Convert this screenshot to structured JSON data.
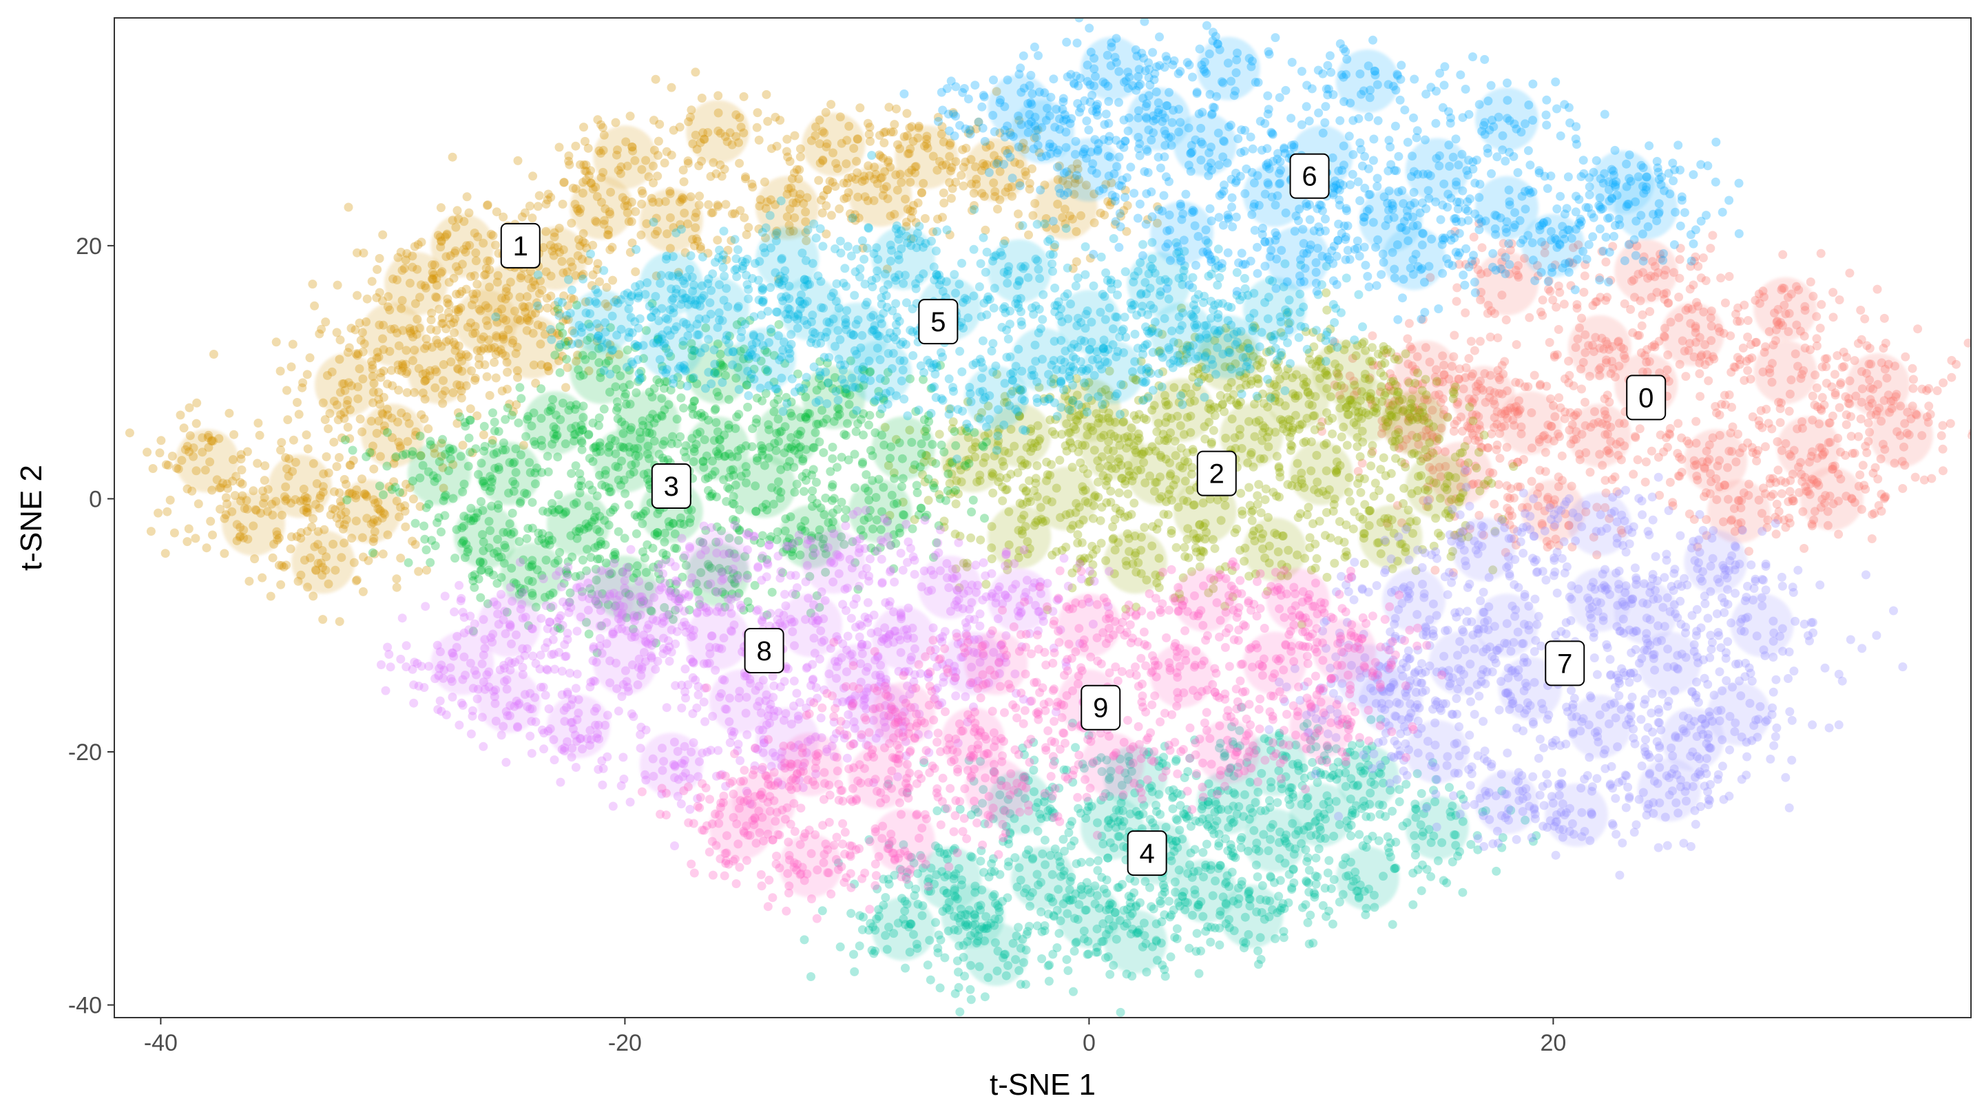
{
  "chart_data": {
    "type": "scatter",
    "title": "",
    "xlabel": "t-SNE 1",
    "ylabel": "t-SNE 2",
    "xlim": [
      -42,
      38
    ],
    "ylim": [
      -41,
      38
    ],
    "x_ticks": [
      -40,
      -20,
      0,
      20
    ],
    "y_ticks": [
      -40,
      -20,
      0,
      20
    ],
    "x_tick_labels": [
      "-40",
      "-20",
      "0",
      "20"
    ],
    "y_tick_labels": [
      "-40",
      "-20",
      "0",
      "20"
    ],
    "grid": false,
    "legend": "none",
    "clusters": [
      {
        "label": "0",
        "color": "#F8766D",
        "label_x": 24.0,
        "label_y": 8.0,
        "points": [
          [
            14.5,
            10
          ],
          [
            18,
            17
          ],
          [
            24,
            18
          ],
          [
            30,
            15
          ],
          [
            34,
            9
          ],
          [
            35,
            5
          ],
          [
            32,
            0
          ],
          [
            28,
            -1
          ],
          [
            20,
            -1
          ],
          [
            16,
            2
          ],
          [
            14,
            6
          ],
          [
            17,
            8
          ],
          [
            22,
            12
          ],
          [
            26,
            13
          ],
          [
            30,
            10
          ],
          [
            31,
            4
          ],
          [
            27,
            3
          ],
          [
            22,
            5
          ],
          [
            19,
            6
          ],
          [
            24,
            9
          ]
        ]
      },
      {
        "label": "1",
        "color": "#D39200",
        "label_x": -24.5,
        "label_y": 20.0,
        "points": [
          [
            -38,
            3
          ],
          [
            -36,
            -2
          ],
          [
            -33,
            -5
          ],
          [
            -31,
            -1
          ],
          [
            -30,
            5
          ],
          [
            -32,
            9
          ],
          [
            -30,
            13
          ],
          [
            -29,
            17
          ],
          [
            -27,
            20
          ],
          [
            -25,
            16
          ],
          [
            -24,
            12
          ],
          [
            -23,
            19
          ],
          [
            -21,
            23
          ],
          [
            -20,
            27
          ],
          [
            -16,
            29
          ],
          [
            -11,
            28
          ],
          [
            -7,
            27
          ],
          [
            -4,
            26
          ],
          [
            -1,
            23
          ],
          [
            -13,
            23
          ],
          [
            -18,
            22
          ],
          [
            -9,
            24
          ],
          [
            -34,
            1
          ],
          [
            -28,
            10
          ],
          [
            -26,
            14
          ]
        ]
      },
      {
        "label": "2",
        "color": "#93AA00",
        "label_x": 5.5,
        "label_y": 2.0,
        "points": [
          [
            -5,
            3
          ],
          [
            -3,
            -3
          ],
          [
            2,
            -5
          ],
          [
            8,
            -4
          ],
          [
            13,
            -3
          ],
          [
            15,
            1
          ],
          [
            14,
            6
          ],
          [
            11,
            10
          ],
          [
            6,
            11
          ],
          [
            0,
            7
          ],
          [
            -3,
            5
          ],
          [
            3,
            2
          ],
          [
            7,
            5
          ],
          [
            10,
            2
          ],
          [
            5,
            -1
          ],
          [
            -1,
            0
          ],
          [
            12,
            7
          ],
          [
            9,
            8
          ],
          [
            1,
            4
          ],
          [
            4,
            7
          ]
        ]
      },
      {
        "label": "3",
        "color": "#00BA38",
        "label_x": -18.0,
        "label_y": 1.0,
        "points": [
          [
            -28,
            2
          ],
          [
            -26,
            -3
          ],
          [
            -24,
            -6
          ],
          [
            -20,
            -7
          ],
          [
            -16,
            -6
          ],
          [
            -12,
            -3
          ],
          [
            -9,
            -1
          ],
          [
            -8,
            4
          ],
          [
            -11,
            8
          ],
          [
            -16,
            10
          ],
          [
            -21,
            10
          ],
          [
            -23,
            6
          ],
          [
            -25,
            2
          ],
          [
            -20,
            3
          ],
          [
            -16,
            4
          ],
          [
            -13,
            5
          ],
          [
            -18,
            -1
          ],
          [
            -22,
            -2
          ],
          [
            -14,
            1
          ],
          [
            -19,
            6
          ]
        ]
      },
      {
        "label": "4",
        "color": "#00C19F",
        "label_x": 2.5,
        "label_y": -28.0,
        "points": [
          [
            -8,
            -34
          ],
          [
            -6,
            -30
          ],
          [
            -3,
            -24
          ],
          [
            2,
            -22
          ],
          [
            8,
            -21
          ],
          [
            12,
            -22
          ],
          [
            15,
            -26
          ],
          [
            12,
            -30
          ],
          [
            7,
            -33
          ],
          [
            2,
            -35
          ],
          [
            -4,
            -36
          ],
          [
            -2,
            -30
          ],
          [
            3,
            -28
          ],
          [
            8,
            -27
          ],
          [
            5,
            -31
          ],
          [
            0,
            -33
          ],
          [
            10,
            -25
          ],
          [
            -5,
            -33
          ],
          [
            6,
            -24
          ],
          [
            1,
            -26
          ]
        ]
      },
      {
        "label": "5",
        "color": "#00B9E3",
        "label_x": -6.5,
        "label_y": 14.0,
        "points": [
          [
            -21,
            14
          ],
          [
            -18,
            17
          ],
          [
            -13,
            19
          ],
          [
            -8,
            19
          ],
          [
            -3,
            18
          ],
          [
            3,
            17
          ],
          [
            8,
            15
          ],
          [
            6,
            12
          ],
          [
            1,
            10
          ],
          [
            -4,
            8
          ],
          [
            -9,
            10
          ],
          [
            -14,
            11
          ],
          [
            -18,
            12
          ],
          [
            -12,
            15
          ],
          [
            -6,
            15
          ],
          [
            0,
            14
          ],
          [
            4,
            13
          ],
          [
            -10,
            13
          ],
          [
            -16,
            15
          ],
          [
            -2,
            11
          ]
        ]
      },
      {
        "label": "6",
        "color": "#00A9FF",
        "label_x": 9.5,
        "label_y": 25.5,
        "points": [
          [
            -3,
            31
          ],
          [
            1,
            34
          ],
          [
            6,
            34
          ],
          [
            12,
            33
          ],
          [
            18,
            30
          ],
          [
            23,
            25
          ],
          [
            24,
            23
          ],
          [
            20,
            20
          ],
          [
            14,
            19
          ],
          [
            9,
            19
          ],
          [
            4,
            21
          ],
          [
            0,
            26
          ],
          [
            -2,
            29
          ],
          [
            5,
            28
          ],
          [
            10,
            27
          ],
          [
            15,
            26
          ],
          [
            18,
            23
          ],
          [
            8,
            24
          ],
          [
            3,
            30
          ],
          [
            13,
            22
          ]
        ]
      },
      {
        "label": "7",
        "color": "#9590FF",
        "label_x": 20.5,
        "label_y": -13.0,
        "points": [
          [
            12,
            -14
          ],
          [
            14,
            -8
          ],
          [
            17,
            -4
          ],
          [
            22,
            -2
          ],
          [
            27,
            -5
          ],
          [
            29,
            -10
          ],
          [
            28,
            -17
          ],
          [
            25,
            -23
          ],
          [
            21,
            -25
          ],
          [
            18,
            -24
          ],
          [
            15,
            -20
          ],
          [
            13,
            -16
          ],
          [
            18,
            -10
          ],
          [
            22,
            -8
          ],
          [
            25,
            -13
          ],
          [
            22,
            -18
          ],
          [
            19,
            -15
          ],
          [
            16,
            -13
          ],
          [
            24,
            -9
          ],
          [
            26,
            -19
          ]
        ]
      },
      {
        "label": "8",
        "color": "#DB72FB",
        "label_x": -14.0,
        "label_y": -12.0,
        "points": [
          [
            -27,
            -13
          ],
          [
            -25,
            -10
          ],
          [
            -21,
            -8
          ],
          [
            -16,
            -5
          ],
          [
            -11,
            -5
          ],
          [
            -6,
            -7
          ],
          [
            -3,
            -8
          ],
          [
            -5,
            -13
          ],
          [
            -9,
            -17
          ],
          [
            -13,
            -19
          ],
          [
            -18,
            -21
          ],
          [
            -22,
            -18
          ],
          [
            -25,
            -16
          ],
          [
            -20,
            -13
          ],
          [
            -16,
            -11
          ],
          [
            -12,
            -10
          ],
          [
            -8,
            -11
          ],
          [
            -15,
            -16
          ],
          [
            -19,
            -9
          ],
          [
            -10,
            -14
          ]
        ]
      },
      {
        "label": "9",
        "color": "#FF61C3",
        "label_x": 0.5,
        "label_y": -16.5,
        "points": [
          [
            -15,
            -26
          ],
          [
            -12,
            -29
          ],
          [
            -8,
            -27
          ],
          [
            -4,
            -23
          ],
          [
            1,
            -21
          ],
          [
            6,
            -20
          ],
          [
            10,
            -18
          ],
          [
            11,
            -12
          ],
          [
            9,
            -8
          ],
          [
            5,
            -8
          ],
          [
            0,
            -10
          ],
          [
            -4,
            -13
          ],
          [
            -8,
            -17
          ],
          [
            -12,
            -21
          ],
          [
            -14,
            -24
          ],
          [
            -9,
            -22
          ],
          [
            -5,
            -19
          ],
          [
            0,
            -16
          ],
          [
            4,
            -14
          ],
          [
            8,
            -13
          ]
        ]
      }
    ]
  }
}
